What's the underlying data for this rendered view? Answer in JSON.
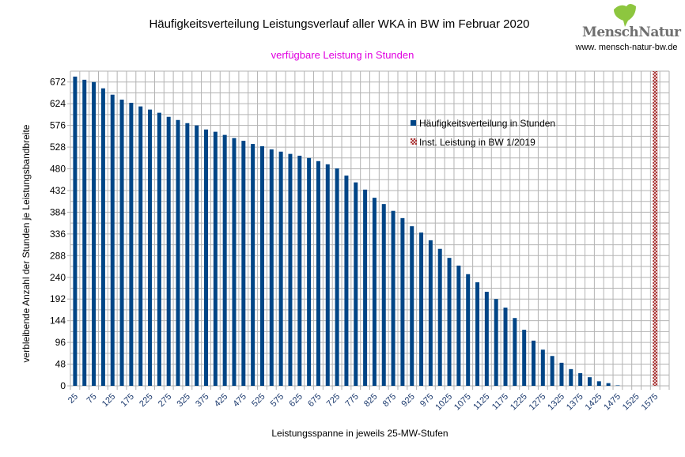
{
  "logo": {
    "text": "MenschNatur",
    "url": "www. mensch-natur-bw.de"
  },
  "colors": {
    "bar": "#004586",
    "inst": "#a52a2a",
    "grid": "#b3b3b3",
    "subtitle": "#e000e0"
  },
  "chart_data": {
    "type": "bar",
    "title": "Häufigkeitsverteilung Leistungsverlauf aller WKA in BW im Februar 2020",
    "subtitle": "verfügbare Leistung in Stunden",
    "xlabel": "Leistungsspanne in jeweils 25-MW-Stufen",
    "ylabel": "verbleibende Anzahl der Stunden je Leistungsbandbreite",
    "ylim": [
      0,
      696
    ],
    "yticks": [
      0,
      48,
      96,
      144,
      192,
      240,
      288,
      336,
      384,
      432,
      480,
      528,
      576,
      624,
      672
    ],
    "grid": true,
    "legend_position": "top-right",
    "categories": [
      25,
      50,
      75,
      100,
      125,
      150,
      175,
      200,
      225,
      250,
      275,
      300,
      325,
      350,
      375,
      400,
      425,
      450,
      475,
      500,
      525,
      550,
      575,
      600,
      625,
      650,
      675,
      700,
      725,
      750,
      775,
      800,
      825,
      850,
      875,
      900,
      925,
      950,
      975,
      1000,
      1025,
      1050,
      1075,
      1100,
      1125,
      1150,
      1175,
      1200,
      1225,
      1250,
      1275,
      1300,
      1325,
      1350,
      1375,
      1400,
      1425,
      1450,
      1475,
      1500,
      1525,
      1550,
      1575,
      1600
    ],
    "xtick_labels": [
      "25",
      "75",
      "125",
      "175",
      "225",
      "275",
      "325",
      "375",
      "425",
      "475",
      "525",
      "575",
      "625",
      "675",
      "725",
      "775",
      "825",
      "875",
      "925",
      "975",
      "1025",
      "1075",
      "1125",
      "1175",
      "1225",
      "1275",
      "1325",
      "1375",
      "1425",
      "1475",
      "1525",
      "1575"
    ],
    "series": [
      {
        "name": "Häufigkeitsverteilung in Stunden",
        "values": [
          684,
          677,
          672,
          658,
          644,
          633,
          626,
          618,
          611,
          604,
          595,
          588,
          581,
          576,
          567,
          562,
          555,
          548,
          542,
          535,
          530,
          523,
          518,
          513,
          509,
          504,
          497,
          490,
          481,
          465,
          450,
          434,
          416,
          402,
          387,
          371,
          353,
          339,
          322,
          303,
          283,
          266,
          247,
          229,
          208,
          192,
          173,
          150,
          124,
          100,
          80,
          66,
          51,
          37,
          28,
          19,
          10,
          6,
          1,
          0,
          0,
          0,
          0,
          0
        ]
      },
      {
        "name": "Inst. Leistung in BW 1/2019",
        "category": 1575,
        "value": 696
      }
    ]
  }
}
